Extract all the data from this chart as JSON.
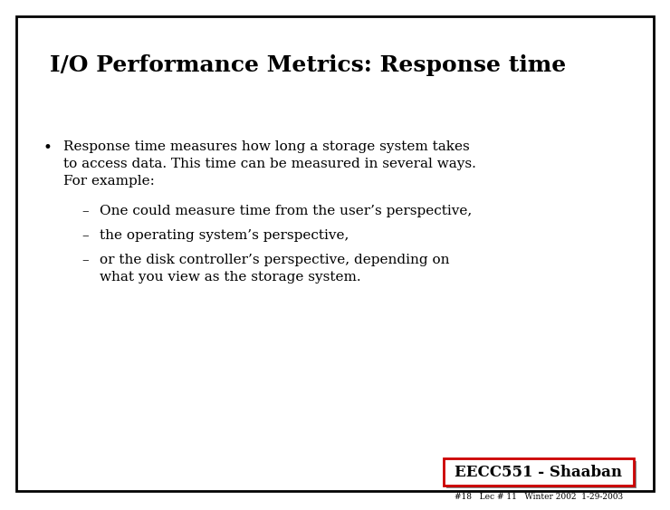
{
  "title": "I/O Performance Metrics: Response time",
  "background_color": "#ffffff",
  "border_color": "#000000",
  "slide_bg": "#ffffff",
  "bullet_lines": [
    "Response time measures how long a storage system takes",
    "to access data. This time can be measured in several ways.",
    "For example:"
  ],
  "sub_bullets": [
    [
      "One could measure time from the user’s perspective,"
    ],
    [
      "the operating system’s perspective,"
    ],
    [
      "or the disk controller’s perspective, depending on",
      "what you view as the storage system."
    ]
  ],
  "footer_main": "EECC551 - Shaaban",
  "footer_sub": "#18   Lec # 11   Winter 2002  1-29-2003",
  "footer_box_color": "#cc0000",
  "footer_box_fill": "#ffffff",
  "title_fontsize": 18,
  "bullet_fontsize": 11,
  "sub_bullet_fontsize": 11,
  "footer_main_fontsize": 12,
  "footer_sub_fontsize": 6.5
}
